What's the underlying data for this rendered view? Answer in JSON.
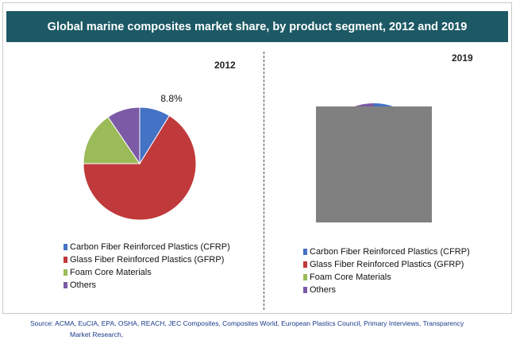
{
  "title": "Global marine composites market share, by product segment, 2012 and 2019",
  "chart_data": [
    {
      "type": "pie",
      "title": "2012",
      "categories": [
        "Carbon Fiber Reinforced Plastics (CFRP)",
        "Glass Fiber Reinforced Plastics (GFRP)",
        "Foam Core Materials",
        "Others"
      ],
      "values": [
        8.8,
        66.2,
        15.5,
        9.5
      ],
      "data_labels": [
        "8.8%",
        "",
        "",
        ""
      ],
      "colors": [
        "#4472c4",
        "#c0393b",
        "#9bbb59",
        "#7c5aa6"
      ],
      "legend": "bottom"
    },
    {
      "type": "pie",
      "title": "2019",
      "categories": [
        "Carbon Fiber Reinforced Plastics (CFRP)",
        "Glass Fiber Reinforced Plastics (GFRP)",
        "Foam Core Materials",
        "Others"
      ],
      "values": [
        null,
        null,
        null,
        null
      ],
      "colors": [
        "#4472c4",
        "#c0393b",
        "#9bbb59",
        "#7c5aa6"
      ],
      "legend": "bottom",
      "obscured": true
    }
  ],
  "source": {
    "line1": "Source: ACMA, EuCIA, EPA, OSHA, REACH, JEC Composites, Composites World, European Plastics Council, Primary Interviews, Transparency",
    "line2": "Market Research,"
  }
}
